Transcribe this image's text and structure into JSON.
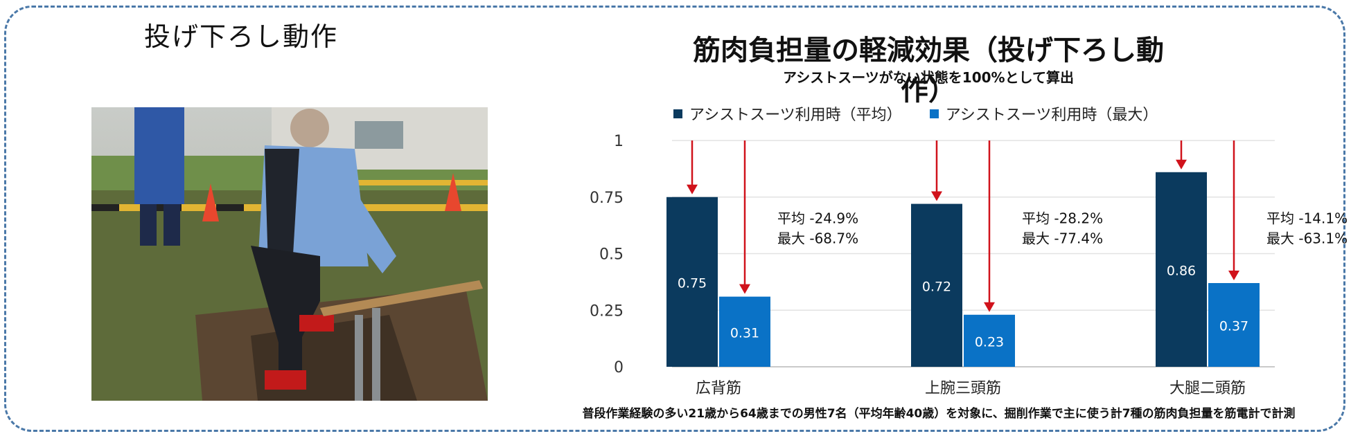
{
  "left_title": "投げ下ろし動作",
  "photo": {
    "description_icon": "worker-photo-icon"
  },
  "chart_data": {
    "type": "bar",
    "title": "筋肉負担量の軽減効果（投げ下ろし動作）",
    "subtitle": "アシストスーツがない状態を100%として算出",
    "categories": [
      "広背筋",
      "上腕三頭筋",
      "大腿二頭筋"
    ],
    "series": [
      {
        "name": "アシストスーツ利用時（平均）",
        "values": [
          0.75,
          0.72,
          0.86
        ],
        "color": "#0b3a5e"
      },
      {
        "name": "アシストスーツ利用時（最大）",
        "values": [
          0.31,
          0.23,
          0.37
        ],
        "color": "#0a72c6"
      }
    ],
    "value_labels": [
      [
        "0.75",
        "0.72",
        "0.86"
      ],
      [
        "0.31",
        "0.23",
        "0.37"
      ]
    ],
    "annotations": [
      {
        "avg": "平均 -24.9%",
        "max": "最大 -68.7%"
      },
      {
        "avg": "平均 -28.2%",
        "max": "最大 -77.4%"
      },
      {
        "avg": "平均 -14.1%",
        "max": "最大 -63.1%"
      }
    ],
    "yticks": [
      "0",
      "0.25",
      "0.5",
      "0.75",
      "1"
    ],
    "ylim": [
      0,
      1
    ],
    "grid": true,
    "legend": "top",
    "arrow_color": "#d0121b"
  },
  "footnote": "普段作業経験の多い21歳から64歳までの男性7名（平均年齢40歳）を対象に、掘削作業で主に使う計7種の筋肉負担量を筋電計で計測"
}
